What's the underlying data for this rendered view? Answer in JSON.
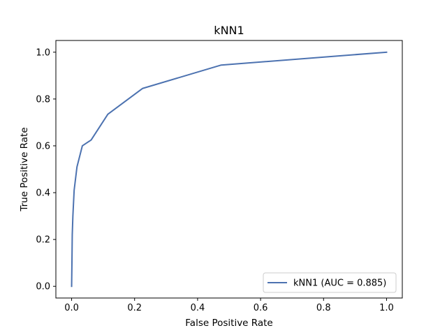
{
  "chart_data": {
    "type": "line",
    "title": "kNN1",
    "xlabel": "False Positive Rate",
    "ylabel": "True Positive Rate",
    "xlim": [
      -0.05,
      1.05
    ],
    "ylim": [
      -0.05,
      1.05
    ],
    "xticks": [
      0.0,
      0.2,
      0.4,
      0.6,
      0.8,
      1.0
    ],
    "yticks": [
      0.0,
      0.2,
      0.4,
      0.6,
      0.8,
      1.0
    ],
    "xtick_labels": [
      "0.0",
      "0.2",
      "0.4",
      "0.6",
      "0.8",
      "1.0"
    ],
    "ytick_labels": [
      "0.0",
      "0.2",
      "0.4",
      "0.6",
      "0.8",
      "1.0"
    ],
    "grid": false,
    "legend_position": "lower-right",
    "series": [
      {
        "name": "kNN1 (AUC = 0.885)",
        "color": "#4c72b0",
        "x": [
          0.0,
          0.001,
          0.002,
          0.004,
          0.008,
          0.017,
          0.034,
          0.062,
          0.115,
          0.225,
          0.475,
          1.0
        ],
        "y": [
          0.0,
          0.1,
          0.22,
          0.3,
          0.41,
          0.51,
          0.6,
          0.625,
          0.735,
          0.845,
          0.945,
          1.0
        ]
      }
    ]
  }
}
